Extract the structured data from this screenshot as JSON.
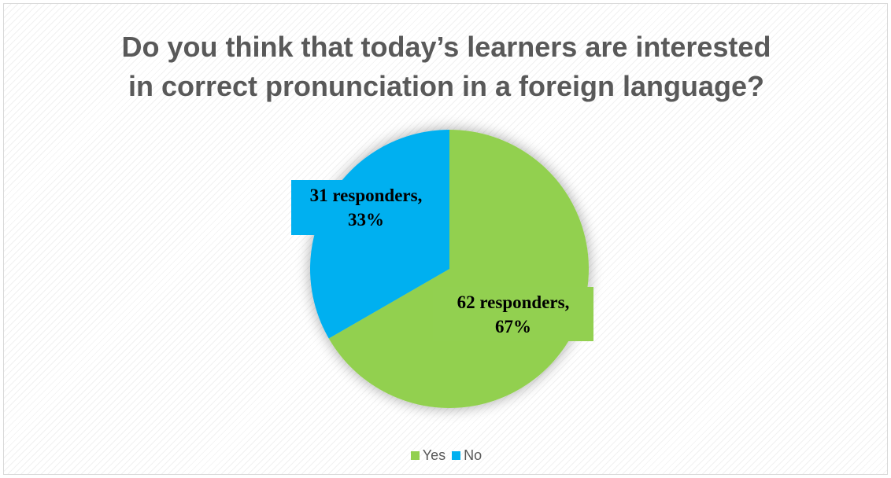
{
  "chart_data": {
    "type": "pie",
    "title_lines": [
      "Do you think that today’s learners are interested",
      "in correct pronunciation in a foreign language?"
    ],
    "categories": [
      "Yes",
      "No"
    ],
    "values": [
      62,
      31
    ],
    "percents": [
      67,
      33
    ],
    "colors": [
      "#92d050",
      "#00b0f0"
    ],
    "data_labels": [
      {
        "line1": "62 responders,",
        "line2": "67%"
      },
      {
        "line1": "31 responders,",
        "line2": "33%"
      }
    ],
    "legend": {
      "placement": "bottom",
      "items": [
        "Yes",
        "No"
      ]
    }
  }
}
